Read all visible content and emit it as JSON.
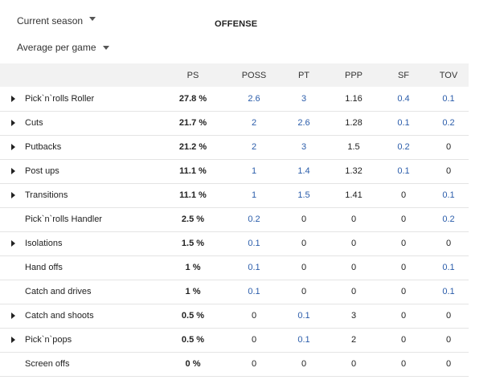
{
  "filters": {
    "season": "Current season",
    "mode": "Average per game"
  },
  "section_title": "OFFENSE",
  "columns": [
    "PS",
    "POSS",
    "PT",
    "PPP",
    "SF",
    "TOV"
  ],
  "rows": [
    {
      "name": "Pick`n`rolls Roller",
      "expandable": true,
      "ps": "27.8 %",
      "poss": "2.6",
      "pt": "3",
      "ppp": "1.16",
      "sf": "0.4",
      "tov": "0.1"
    },
    {
      "name": "Cuts",
      "expandable": true,
      "ps": "21.7 %",
      "poss": "2",
      "pt": "2.6",
      "ppp": "1.28",
      "sf": "0.1",
      "tov": "0.2"
    },
    {
      "name": "Putbacks",
      "expandable": true,
      "ps": "21.2 %",
      "poss": "2",
      "pt": "3",
      "ppp": "1.5",
      "sf": "0.2",
      "tov": "0"
    },
    {
      "name": "Post ups",
      "expandable": true,
      "ps": "11.1 %",
      "poss": "1",
      "pt": "1.4",
      "ppp": "1.32",
      "sf": "0.1",
      "tov": "0"
    },
    {
      "name": "Transitions",
      "expandable": true,
      "ps": "11.1 %",
      "poss": "1",
      "pt": "1.5",
      "ppp": "1.41",
      "sf": "0",
      "tov": "0.1"
    },
    {
      "name": "Pick`n`rolls Handler",
      "expandable": false,
      "ps": "2.5 %",
      "poss": "0.2",
      "pt": "0",
      "ppp": "0",
      "sf": "0",
      "tov": "0.2"
    },
    {
      "name": "Isolations",
      "expandable": true,
      "ps": "1.5 %",
      "poss": "0.1",
      "pt": "0",
      "ppp": "0",
      "sf": "0",
      "tov": "0"
    },
    {
      "name": "Hand offs",
      "expandable": false,
      "ps": "1 %",
      "poss": "0.1",
      "pt": "0",
      "ppp": "0",
      "sf": "0",
      "tov": "0.1"
    },
    {
      "name": "Catch and drives",
      "expandable": false,
      "ps": "1 %",
      "poss": "0.1",
      "pt": "0",
      "ppp": "0",
      "sf": "0",
      "tov": "0.1"
    },
    {
      "name": "Catch and shoots",
      "expandable": true,
      "ps": "0.5 %",
      "poss": "0",
      "pt": "0.1",
      "ppp": "3",
      "sf": "0",
      "tov": "0"
    },
    {
      "name": "Pick`n`pops",
      "expandable": true,
      "ps": "0.5 %",
      "poss": "0",
      "pt": "0.1",
      "ppp": "2",
      "sf": "0",
      "tov": "0"
    },
    {
      "name": "Screen offs",
      "expandable": false,
      "ps": "0 %",
      "poss": "0",
      "pt": "0",
      "ppp": "0",
      "sf": "0",
      "tov": "0"
    }
  ]
}
